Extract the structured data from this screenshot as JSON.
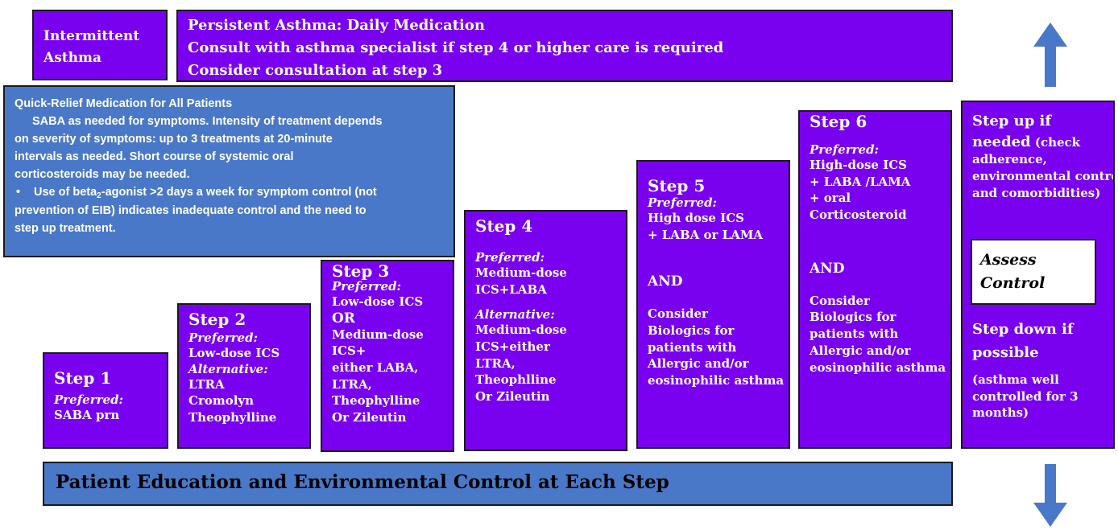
{
  "intermittent": {
    "lines": [
      "Intermittent",
      "Asthma"
    ]
  },
  "persistent": {
    "lines": [
      "Persistent Asthma: Daily Medication",
      "Consult with asthma specialist if  step 4 or higher care is required",
      "Consider consultation at step 3"
    ]
  },
  "quick_relief": {
    "heading": "Quick-Relief Medication for All Patients",
    "indented": [
      "SABA as needed for symptoms. Intensity of treatment depends"
    ],
    "plain": [
      "on severity of symptoms: up to 3 treatments at 20-minute",
      "intervals as needed.  Short course of systemic oral",
      "corticosteroids may be needed."
    ],
    "bullet": "•",
    "bullet_pre": "Use of beta",
    "bullet_sub": "2",
    "bullet_post": "-agonist >2 days a week for symptom control (not",
    "bullet_cont": [
      "prevention of EIB) indicates inadequate control and the need to",
      "step up treatment."
    ]
  },
  "steps": {
    "s1": {
      "title": "Step 1",
      "preferred": "Preferred:",
      "items": [
        "SABA prn"
      ]
    },
    "s2": {
      "title": "Step 2",
      "preferred": "Preferred:",
      "pref_items": [
        "Low-dose ICS"
      ],
      "alternative": "Alternative:",
      "alt_items": [
        "LTRA",
        "Cromolyn",
        "Theophylline"
      ]
    },
    "s3": {
      "title": "Step 3",
      "preferred": "Preferred:",
      "pref_items": [
        "Low-dose ICS"
      ],
      "or": "OR",
      "alt_items": [
        "Medium-dose",
        "ICS+",
        "either LABA,",
        "LTRA,",
        "Theophylline",
        "Or Zileutin"
      ]
    },
    "s4": {
      "title": "Step 4",
      "preferred": "Preferred:",
      "pref_items": [
        "Medium-dose",
        "ICS+LABA"
      ],
      "alternative": "Alternative:",
      "alt_items": [
        "Medium-dose",
        "ICS+either",
        "LTRA,",
        "Theophlline",
        "Or Zileutin"
      ]
    },
    "s5": {
      "title": "Step 5",
      "preferred": "Preferred:",
      "pref_items": [
        "High dose ICS",
        "+ LABA or LAMA"
      ],
      "and": "AND",
      "consider_items": [
        "Consider",
        "Biologics for",
        "patients with",
        "Allergic and/or",
        "eosinophilic asthma"
      ]
    },
    "s6": {
      "title": "Step 6",
      "preferred": "Preferred:",
      "pref_items": [
        "High-dose ICS",
        "+ LABA /LAMA",
        "+ oral",
        "Corticosteroid"
      ],
      "and": "AND",
      "consider_items": [
        "Consider",
        "Biologics for",
        "patients with",
        "Allergic and/or",
        "eosinophilic asthma"
      ]
    }
  },
  "step_up": {
    "line1": "Step up if",
    "line2_big": "needed",
    "line2_small": " (check",
    "small_lines": [
      "adherence,",
      "environmental control,",
      "and comorbidities)"
    ]
  },
  "assess": {
    "lines": [
      "Assess",
      "Control"
    ]
  },
  "step_down": {
    "lines": [
      "Step down if",
      "possible"
    ],
    "small_lines": [
      "(asthma well",
      "controlled for 3",
      "months)"
    ]
  },
  "footer": {
    "text": "Patient Education and Environmental Control at Each Step"
  },
  "colors": {
    "step_box": "#7a00f0",
    "blue_box": "#4a78c8",
    "arrow": "#4a78c8"
  },
  "icons": {
    "up": "up-arrow-icon",
    "down": "down-arrow-icon"
  }
}
